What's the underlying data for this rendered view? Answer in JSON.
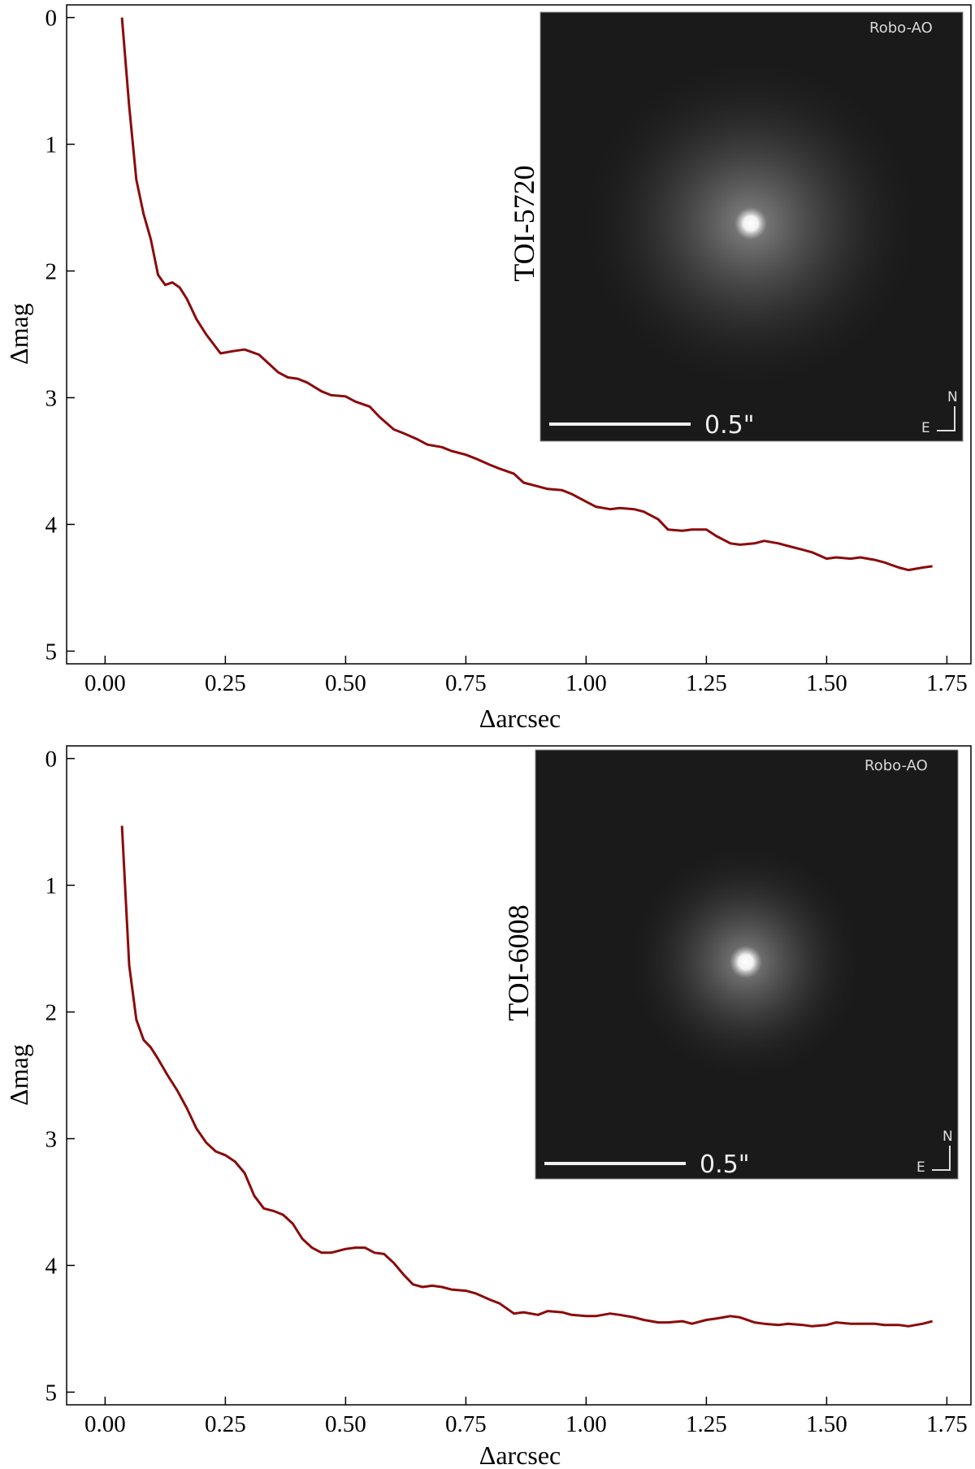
{
  "colors": {
    "curve": "#8b0a0a",
    "axes": "#000000",
    "inset_bg": "#1a1a1a"
  },
  "chart_data": [
    {
      "type": "line",
      "xlabel": "Δarcsec",
      "ylabel": "Δmag",
      "xlim": [
        -0.08,
        1.8
      ],
      "ylim": [
        5.1,
        -0.1
      ],
      "y_inverted": true,
      "xticks": [
        "0.00",
        "0.25",
        "0.50",
        "0.75",
        "1.00",
        "1.25",
        "1.50",
        "1.75"
      ],
      "yticks": [
        "0",
        "1",
        "2",
        "3",
        "4",
        "5"
      ],
      "grid": false,
      "inset": {
        "target": "TOI-5720",
        "instrument": "Robo-AO",
        "scale_label": "0.5\"",
        "compass_north": "N",
        "compass_east": "E"
      },
      "series": [
        {
          "x": [
            0.035,
            0.05,
            0.065,
            0.08,
            0.095,
            0.11,
            0.125,
            0.14,
            0.155,
            0.17,
            0.19,
            0.21,
            0.24,
            0.27,
            0.29,
            0.32,
            0.34,
            0.36,
            0.38,
            0.4,
            0.42,
            0.45,
            0.47,
            0.5,
            0.52,
            0.55,
            0.57,
            0.6,
            0.62,
            0.65,
            0.67,
            0.7,
            0.72,
            0.75,
            0.77,
            0.8,
            0.82,
            0.85,
            0.87,
            0.9,
            0.92,
            0.95,
            0.97,
            1.0,
            1.02,
            1.05,
            1.07,
            1.1,
            1.12,
            1.15,
            1.17,
            1.2,
            1.22,
            1.25,
            1.27,
            1.3,
            1.32,
            1.35,
            1.37,
            1.4,
            1.42,
            1.45,
            1.47,
            1.5,
            1.52,
            1.55,
            1.57,
            1.6,
            1.62,
            1.65,
            1.67,
            1.7,
            1.72
          ],
          "y": [
            0.0,
            0.7,
            1.28,
            1.55,
            1.75,
            2.03,
            2.11,
            2.09,
            2.13,
            2.22,
            2.38,
            2.5,
            2.65,
            2.63,
            2.62,
            2.66,
            2.73,
            2.8,
            2.84,
            2.85,
            2.88,
            2.95,
            2.98,
            2.99,
            3.03,
            3.07,
            3.15,
            3.25,
            3.28,
            3.33,
            3.37,
            3.39,
            3.42,
            3.45,
            3.48,
            3.53,
            3.56,
            3.6,
            3.67,
            3.7,
            3.72,
            3.73,
            3.76,
            3.82,
            3.86,
            3.88,
            3.87,
            3.88,
            3.9,
            3.96,
            4.04,
            4.05,
            4.04,
            4.04,
            4.09,
            4.15,
            4.16,
            4.15,
            4.13,
            4.15,
            4.17,
            4.2,
            4.22,
            4.27,
            4.26,
            4.27,
            4.26,
            4.28,
            4.3,
            4.34,
            4.36,
            4.34,
            4.33
          ]
        }
      ]
    },
    {
      "type": "line",
      "xlabel": "Δarcsec",
      "ylabel": "Δmag",
      "xlim": [
        -0.08,
        1.8
      ],
      "ylim": [
        5.1,
        -0.1
      ],
      "y_inverted": true,
      "xticks": [
        "0.00",
        "0.25",
        "0.50",
        "0.75",
        "1.00",
        "1.25",
        "1.50",
        "1.75"
      ],
      "yticks": [
        "0",
        "1",
        "2",
        "3",
        "4",
        "5"
      ],
      "grid": false,
      "inset": {
        "target": "TOI-6008",
        "instrument": "Robo-AO",
        "scale_label": "0.5\"",
        "compass_north": "N",
        "compass_east": "E"
      },
      "series": [
        {
          "x": [
            0.035,
            0.05,
            0.065,
            0.08,
            0.095,
            0.11,
            0.13,
            0.15,
            0.17,
            0.19,
            0.21,
            0.23,
            0.25,
            0.27,
            0.29,
            0.31,
            0.33,
            0.35,
            0.37,
            0.39,
            0.41,
            0.43,
            0.45,
            0.47,
            0.5,
            0.52,
            0.54,
            0.56,
            0.58,
            0.6,
            0.62,
            0.64,
            0.66,
            0.68,
            0.7,
            0.72,
            0.75,
            0.77,
            0.8,
            0.82,
            0.85,
            0.87,
            0.9,
            0.92,
            0.95,
            0.97,
            1.0,
            1.02,
            1.05,
            1.07,
            1.1,
            1.12,
            1.15,
            1.17,
            1.2,
            1.22,
            1.25,
            1.27,
            1.3,
            1.32,
            1.35,
            1.37,
            1.4,
            1.42,
            1.45,
            1.47,
            1.5,
            1.52,
            1.55,
            1.57,
            1.6,
            1.62,
            1.65,
            1.67,
            1.7,
            1.72
          ],
          "y": [
            0.53,
            1.63,
            2.06,
            2.22,
            2.28,
            2.37,
            2.5,
            2.62,
            2.76,
            2.92,
            3.03,
            3.1,
            3.13,
            3.18,
            3.27,
            3.45,
            3.55,
            3.57,
            3.6,
            3.67,
            3.79,
            3.86,
            3.9,
            3.9,
            3.87,
            3.86,
            3.86,
            3.9,
            3.91,
            3.98,
            4.07,
            4.15,
            4.17,
            4.16,
            4.17,
            4.19,
            4.2,
            4.22,
            4.27,
            4.3,
            4.38,
            4.37,
            4.39,
            4.36,
            4.37,
            4.39,
            4.4,
            4.4,
            4.38,
            4.39,
            4.41,
            4.43,
            4.45,
            4.45,
            4.44,
            4.46,
            4.43,
            4.42,
            4.4,
            4.41,
            4.45,
            4.46,
            4.47,
            4.46,
            4.47,
            4.48,
            4.47,
            4.45,
            4.46,
            4.46,
            4.46,
            4.47,
            4.47,
            4.48,
            4.46,
            4.44
          ]
        }
      ]
    }
  ]
}
